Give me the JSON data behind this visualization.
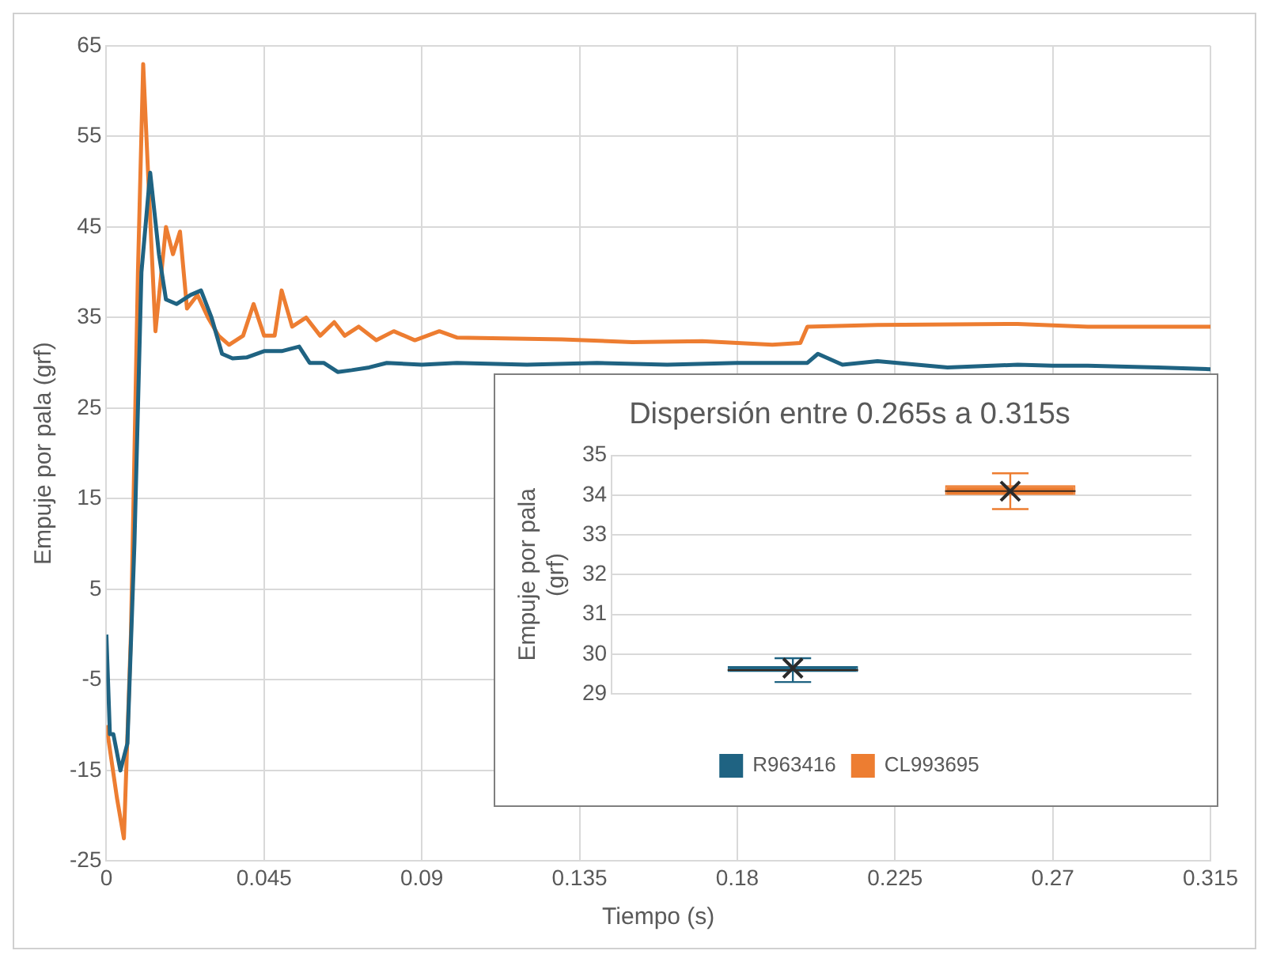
{
  "chart_data": [
    {
      "type": "line",
      "xlabel": "Tiempo (s)",
      "ylabel": "Empuje por pala (grf)",
      "xlim": [
        0,
        0.315
      ],
      "xticks": [
        0,
        0.045,
        0.09,
        0.135,
        0.18,
        0.225,
        0.27,
        0.315
      ],
      "ylim": [
        -25,
        65
      ],
      "yticks": [
        -25,
        -15,
        -5,
        5,
        15,
        25,
        35,
        45,
        55,
        65
      ],
      "grid": true,
      "series": [
        {
          "color": "#1f6382",
          "x": [
            0,
            0.001,
            0.002,
            0.004,
            0.006,
            0.008,
            0.01,
            0.0125,
            0.015,
            0.017,
            0.02,
            0.024,
            0.027,
            0.03,
            0.033,
            0.036,
            0.04,
            0.045,
            0.05,
            0.055,
            0.058,
            0.062,
            0.066,
            0.07,
            0.075,
            0.08,
            0.09,
            0.1,
            0.12,
            0.14,
            0.16,
            0.18,
            0.2,
            0.203,
            0.21,
            0.22,
            0.24,
            0.26,
            0.27,
            0.28,
            0.3,
            0.315
          ],
          "values": [
            0,
            -11,
            -11,
            -15,
            -12,
            10,
            40,
            51,
            42,
            37,
            36.5,
            37.5,
            38,
            35,
            31,
            30.5,
            30.6,
            31.3,
            31.3,
            31.8,
            30,
            30,
            29,
            29.2,
            29.5,
            30,
            29.8,
            30,
            29.8,
            30,
            29.8,
            30,
            30,
            31,
            29.8,
            30.2,
            29.5,
            29.8,
            29.7,
            29.7,
            29.5,
            29.3
          ]
        },
        {
          "color": "#ed7d31",
          "x": [
            0,
            0.003,
            0.005,
            0.007,
            0.009,
            0.0105,
            0.012,
            0.014,
            0.017,
            0.019,
            0.021,
            0.023,
            0.026,
            0.029,
            0.032,
            0.035,
            0.039,
            0.042,
            0.045,
            0.048,
            0.05,
            0.053,
            0.057,
            0.061,
            0.065,
            0.068,
            0.072,
            0.077,
            0.082,
            0.088,
            0.095,
            0.1,
            0.13,
            0.15,
            0.17,
            0.19,
            0.198,
            0.2,
            0.22,
            0.26,
            0.28,
            0.315
          ],
          "values": [
            -10,
            -18,
            -22.5,
            0,
            40,
            63,
            50,
            33.5,
            45,
            42,
            44.5,
            36,
            37.5,
            35,
            33,
            32,
            33,
            36.5,
            33,
            33,
            38,
            34,
            35,
            33,
            34.5,
            33,
            34,
            32.5,
            33.5,
            32.5,
            33.5,
            32.8,
            32.6,
            32.3,
            32.4,
            32,
            32.2,
            34,
            34.2,
            34.3,
            34,
            34
          ]
        }
      ]
    },
    {
      "type": "box",
      "title": "Dispersión entre 0.265s a 0.315s",
      "ylabel": "Empuje por pala (grf)",
      "categories": [
        null
      ],
      "ylim": [
        29,
        35
      ],
      "yticks": [
        29,
        30,
        31,
        32,
        33,
        34,
        35
      ],
      "grid": "y",
      "legend": "bottom",
      "series": [
        {
          "name": "R963416",
          "color": "#1f6382",
          "boxes": [
            {
              "low": 29.3,
              "q1": 29.55,
              "median": 29.6,
              "q3": 29.7,
              "high": 29.9,
              "mean": 29.65
            }
          ]
        },
        {
          "name": "CL993695",
          "color": "#ed7d31",
          "boxes": [
            {
              "low": 33.65,
              "q1": 34.0,
              "median": 34.1,
              "q3": 34.25,
              "high": 34.55,
              "mean": 34.1
            }
          ]
        }
      ]
    }
  ]
}
